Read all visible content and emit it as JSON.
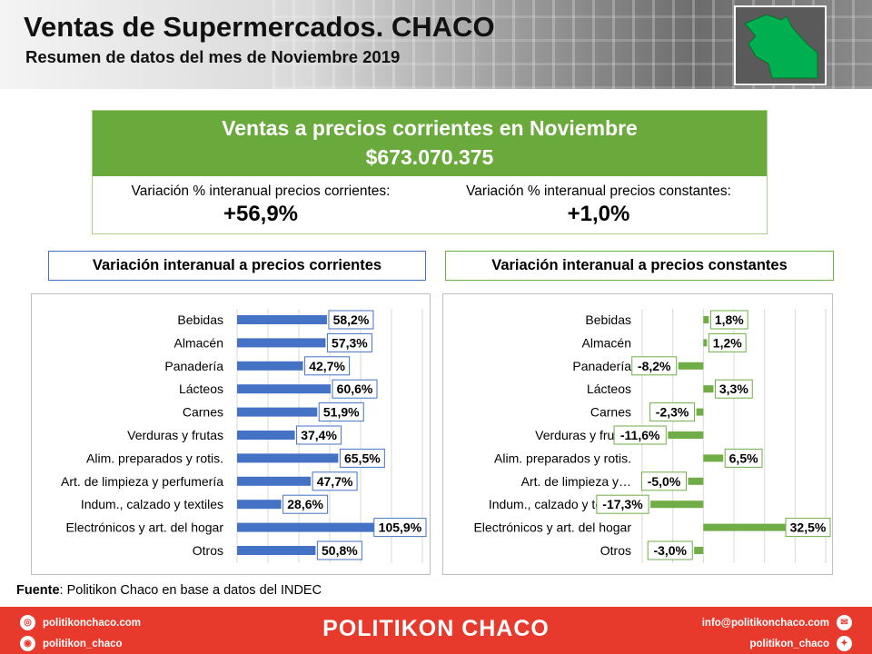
{
  "header": {
    "title": "Ventas de Supermercados. CHACO",
    "subtitle": "Resumen de datos del mes de Noviembre 2019",
    "map_icon": "chaco-province-map-icon"
  },
  "summary": {
    "title": "Ventas a precios corrientes en Noviembre",
    "amount": "$673.070.375",
    "left_label": "Variación % interanual precios corrientes:",
    "left_value": "+56,9%",
    "right_label": "Variación % interanual precios constantes:",
    "right_value": "+1,0%"
  },
  "sections": {
    "left_title": "Variación interanual a precios corrientes",
    "right_title": "Variación interanual a precios constantes"
  },
  "chart_data": [
    {
      "type": "bar",
      "orientation": "horizontal",
      "categories": [
        "Bebidas",
        "Almacén",
        "Panadería",
        "Lácteos",
        "Carnes",
        "Verduras y frutas",
        "Alim. preparados y rotis.",
        "Art. de limpieza y perfumería",
        "Indum., calzado y textiles",
        "Electrónicos y art. del hogar",
        "Otros"
      ],
      "values": [
        58.2,
        57.3,
        42.7,
        60.6,
        51.9,
        37.4,
        65.5,
        47.7,
        28.6,
        105.9,
        50.8
      ],
      "data_labels": [
        "58,2%",
        "57,3%",
        "42,7%",
        "60,6%",
        "51,9%",
        "37,4%",
        "65,5%",
        "47,7%",
        "28,6%",
        "105,9%",
        "50,8%"
      ],
      "color": "#4472c4",
      "xlim": [
        0,
        120
      ],
      "grid": true
    },
    {
      "type": "bar",
      "orientation": "horizontal",
      "categories": [
        "Bebidas",
        "Almacén",
        "Panadería",
        "Lácteos",
        "Carnes",
        "Verduras y frutas",
        "Alim. preparados y rotis.",
        "Art. de limpieza y…",
        "Indum., calzado y textiles",
        "Electrónicos y art. del hogar",
        "Otros"
      ],
      "values": [
        1.8,
        1.2,
        -8.2,
        3.3,
        -2.3,
        -11.6,
        6.5,
        -5.0,
        -17.3,
        32.5,
        -3.0
      ],
      "data_labels": [
        "1,8%",
        "1,2%",
        "-8,2%",
        "3,3%",
        "-2,3%",
        "-11,6%",
        "6,5%",
        "-5,0%",
        "-17,3%",
        "32,5%",
        "-3,0%"
      ],
      "color": "#70ad47",
      "xlim": [
        -20,
        40
      ],
      "grid": true
    }
  ],
  "source": {
    "bold": "Fuente",
    "text": ": Politikon Chaco en base a datos del INDEC"
  },
  "footer": {
    "brand": "POLITIKON CHACO",
    "web": "politikonchaco.com",
    "instagram": "politikon_chaco",
    "email": "info@politikonchaco.com",
    "twitter": "politikon_chaco"
  }
}
